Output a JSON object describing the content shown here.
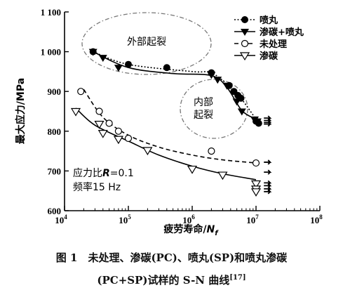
{
  "chart_data": {
    "type": "scatter",
    "x_scale": "log",
    "xlim": [
      10000,
      100000000
    ],
    "ylim": [
      600,
      1100
    ],
    "x_ticks": [
      {
        "value": 10000,
        "base": "10",
        "exp": "4"
      },
      {
        "value": 100000,
        "base": "10",
        "exp": "5"
      },
      {
        "value": 1000000,
        "base": "10",
        "exp": "6"
      },
      {
        "value": 10000000,
        "base": "10",
        "exp": "7"
      },
      {
        "value": 100000000,
        "base": "10",
        "exp": "8"
      }
    ],
    "y_ticks": [
      {
        "value": 600,
        "label": "600"
      },
      {
        "value": 700,
        "label": "700"
      },
      {
        "value": 800,
        "label": "800"
      },
      {
        "value": 900,
        "label": "900"
      },
      {
        "value": 1000,
        "label": "1 000"
      },
      {
        "value": 1100,
        "label": "1 100"
      }
    ],
    "xlabel_prefix": "疲劳寿命/",
    "xlabel_var": "N",
    "xlabel_sub": "f",
    "ylabel": "最大应力/MPa",
    "legend_position": "top-right",
    "annotations": {
      "outer": "外部起裂",
      "inner_line1": "内部",
      "inner_line2": "起裂",
      "ratio": "应力比R=0.1",
      "freq": "频率15 Hz"
    },
    "series": [
      {
        "name": "喷丸",
        "marker": "filled-circle",
        "line": "dotted",
        "points": [
          [
            28000,
            1000
          ],
          [
            100000,
            968
          ],
          [
            400000,
            960
          ],
          [
            2000000,
            947
          ],
          [
            3800000,
            915
          ],
          [
            4500000,
            900
          ],
          [
            5200000,
            890
          ],
          [
            5800000,
            883
          ],
          [
            10000000,
            825
          ],
          [
            11000000,
            820
          ]
        ],
        "fit": [
          [
            28000,
            1000
          ],
          [
            100000,
            968
          ],
          [
            1000000,
            950
          ],
          [
            2000000,
            947
          ],
          [
            4000000,
            910
          ],
          [
            6000000,
            880
          ],
          [
            10000000,
            830
          ]
        ],
        "runouts": [
          [
            12000000,
            822
          ],
          [
            12000000,
            818
          ]
        ]
      },
      {
        "name": "渗碳+喷丸",
        "marker": "filled-triangle",
        "line": "solid",
        "points": [
          [
            28000,
            1000
          ],
          [
            40000,
            985
          ],
          [
            70000,
            960
          ],
          [
            2000000,
            942
          ],
          [
            2500000,
            930
          ],
          [
            3500000,
            915
          ],
          [
            5000000,
            875
          ],
          [
            6000000,
            850
          ],
          [
            9500000,
            830
          ],
          [
            10500000,
            825
          ]
        ],
        "fit": [
          [
            28000,
            1000
          ],
          [
            100000,
            960
          ],
          [
            500000,
            945
          ],
          [
            2000000,
            940
          ],
          [
            3500000,
            910
          ],
          [
            6000000,
            852
          ],
          [
            10000000,
            830
          ]
        ],
        "runouts": [
          [
            12000000,
            833
          ],
          [
            12000000,
            827
          ]
        ]
      },
      {
        "name": "未处理",
        "marker": "open-circle",
        "line": "dashed",
        "points": [
          [
            18000,
            900
          ],
          [
            35000,
            850
          ],
          [
            50000,
            820
          ],
          [
            70000,
            800
          ],
          [
            100000,
            782
          ],
          [
            2000000,
            750
          ],
          [
            10000000,
            720
          ]
        ],
        "fit": [
          [
            20000,
            905
          ],
          [
            40000,
            835
          ],
          [
            100000,
            790
          ],
          [
            300000,
            760
          ],
          [
            1000000,
            740
          ],
          [
            3000000,
            728
          ],
          [
            10000000,
            720
          ]
        ],
        "runouts": [
          [
            12000000,
            722
          ],
          [
            12000000,
            697
          ]
        ]
      },
      {
        "name": "渗碳",
        "marker": "open-triangle",
        "line": "solid",
        "points": [
          [
            15000,
            850
          ],
          [
            35000,
            818
          ],
          [
            40000,
            795
          ],
          [
            70000,
            780
          ],
          [
            200000,
            752
          ],
          [
            1000000,
            705
          ],
          [
            3000000,
            690
          ],
          [
            10000000,
            668
          ],
          [
            10000000,
            655
          ],
          [
            10000000,
            648
          ]
        ],
        "fit": [
          [
            15000,
            858
          ],
          [
            30000,
            815
          ],
          [
            100000,
            775
          ],
          [
            300000,
            740
          ],
          [
            1000000,
            712
          ],
          [
            3000000,
            693
          ],
          [
            10000000,
            678
          ]
        ],
        "runouts": [
          [
            12000000,
            670
          ],
          [
            12000000,
            663
          ],
          [
            12000000,
            655
          ],
          [
            12000000,
            648
          ]
        ]
      }
    ]
  },
  "caption": {
    "line1": "图 1　未处理、渗碳(PC)、喷丸(SP)和喷丸渗碳",
    "line2": "(PC+SP)试样的 S-N 曲线",
    "ref": "[17]"
  }
}
